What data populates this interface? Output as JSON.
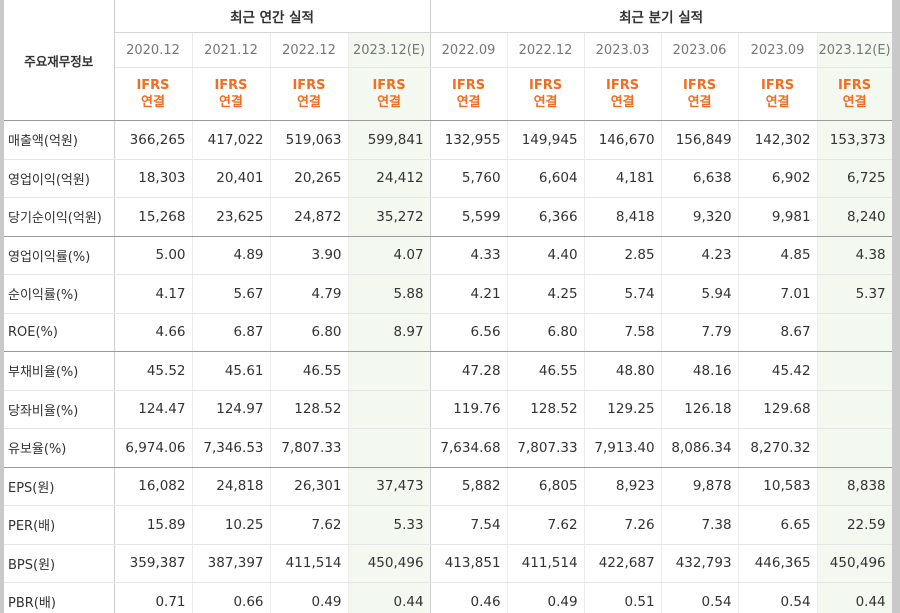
{
  "header": {
    "corner_label": "주요재무정보",
    "annual_group_label": "최근 연간 실적",
    "quarter_group_label": "최근 분기 실적"
  },
  "columns": [
    {
      "period": "2020.12",
      "std": "IFRS",
      "basis": "연결",
      "estimate": false
    },
    {
      "period": "2021.12",
      "std": "IFRS",
      "basis": "연결",
      "estimate": false
    },
    {
      "period": "2022.12",
      "std": "IFRS",
      "basis": "연결",
      "estimate": false
    },
    {
      "period": "2023.12(E)",
      "std": "IFRS",
      "basis": "연결",
      "estimate": true
    },
    {
      "period": "2022.09",
      "std": "IFRS",
      "basis": "연결",
      "estimate": false
    },
    {
      "period": "2022.12",
      "std": "IFRS",
      "basis": "연결",
      "estimate": false
    },
    {
      "period": "2023.03",
      "std": "IFRS",
      "basis": "연결",
      "estimate": false
    },
    {
      "period": "2023.06",
      "std": "IFRS",
      "basis": "연결",
      "estimate": false
    },
    {
      "period": "2023.09",
      "std": "IFRS",
      "basis": "연결",
      "estimate": false
    },
    {
      "period": "2023.12(E)",
      "std": "IFRS",
      "basis": "연결",
      "estimate": true
    }
  ],
  "rows": [
    {
      "label": "매출액(억원)",
      "values": [
        "366,265",
        "417,022",
        "519,063",
        "599,841",
        "132,955",
        "149,945",
        "146,670",
        "156,849",
        "142,302",
        "153,373"
      ]
    },
    {
      "label": "영업이익(억원)",
      "values": [
        "18,303",
        "20,401",
        "20,265",
        "24,412",
        "5,760",
        "6,604",
        "4,181",
        "6,638",
        "6,902",
        "6,725"
      ]
    },
    {
      "label": "당기순이익(억원)",
      "values": [
        "15,268",
        "23,625",
        "24,872",
        "35,272",
        "5,599",
        "6,366",
        "8,418",
        "9,320",
        "9,981",
        "8,240"
      ]
    },
    {
      "label": "영업이익률(%)",
      "values": [
        "5.00",
        "4.89",
        "3.90",
        "4.07",
        "4.33",
        "4.40",
        "2.85",
        "4.23",
        "4.85",
        "4.38"
      ]
    },
    {
      "label": "순이익률(%)",
      "values": [
        "4.17",
        "5.67",
        "4.79",
        "5.88",
        "4.21",
        "4.25",
        "5.74",
        "5.94",
        "7.01",
        "5.37"
      ]
    },
    {
      "label": "ROE(%)",
      "values": [
        "4.66",
        "6.87",
        "6.80",
        "8.97",
        "6.56",
        "6.80",
        "7.58",
        "7.79",
        "8.67",
        ""
      ]
    },
    {
      "label": "부채비율(%)",
      "values": [
        "45.52",
        "45.61",
        "46.55",
        "",
        "47.28",
        "46.55",
        "48.80",
        "48.16",
        "45.42",
        ""
      ]
    },
    {
      "label": "당좌비율(%)",
      "values": [
        "124.47",
        "124.97",
        "128.52",
        "",
        "119.76",
        "128.52",
        "129.25",
        "126.18",
        "129.68",
        ""
      ]
    },
    {
      "label": "유보율(%)",
      "values": [
        "6,974.06",
        "7,346.53",
        "7,807.33",
        "",
        "7,634.68",
        "7,807.33",
        "7,913.40",
        "8,086.34",
        "8,270.32",
        ""
      ]
    },
    {
      "label": "EPS(원)",
      "values": [
        "16,082",
        "24,818",
        "26,301",
        "37,473",
        "5,882",
        "6,805",
        "8,923",
        "9,878",
        "10,583",
        "8,838"
      ]
    },
    {
      "label": "PER(배)",
      "values": [
        "15.89",
        "10.25",
        "7.62",
        "5.33",
        "7.54",
        "7.62",
        "7.26",
        "7.38",
        "6.65",
        "22.59"
      ]
    },
    {
      "label": "BPS(원)",
      "values": [
        "359,387",
        "387,397",
        "411,514",
        "450,496",
        "413,851",
        "411,514",
        "422,687",
        "432,793",
        "446,365",
        "450,496"
      ]
    },
    {
      "label": "PBR(배)",
      "values": [
        "0.71",
        "0.66",
        "0.49",
        "0.44",
        "0.46",
        "0.49",
        "0.51",
        "0.54",
        "0.54",
        "0.44"
      ]
    }
  ],
  "colors": {
    "ifrs_text": "#f26d21",
    "estimate_bg": "#f3f9f1",
    "border": "#c9c9c9"
  }
}
